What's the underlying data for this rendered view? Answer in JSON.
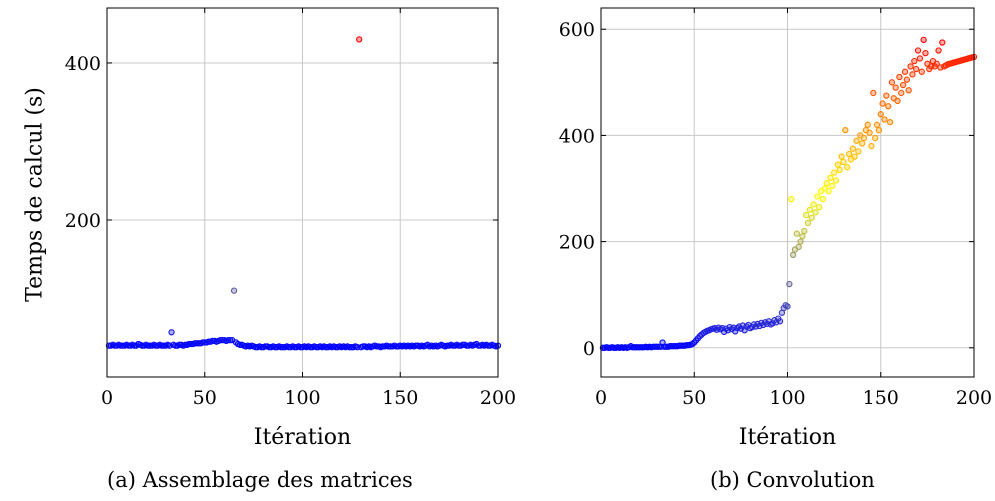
{
  "figure": {
    "caption_a": "(a) Assemblage des matrices",
    "caption_b": "(b) Convolution"
  },
  "chart_data": [
    {
      "type": "scatter",
      "title": "",
      "xlabel": "Itération",
      "ylabel": "Temps de calcul (s)",
      "xlim": [
        0,
        200
      ],
      "ylim": [
        0,
        470
      ],
      "xticks": [
        0,
        50,
        100,
        150,
        200
      ],
      "yticks": [
        200,
        400
      ],
      "grid": true,
      "colormap": [
        "#0000ff",
        "#ffff00",
        "#ff0000"
      ],
      "series": [
        {
          "x": [
            1,
            2,
            3,
            4,
            5,
            6,
            7,
            8,
            9,
            10,
            11,
            12,
            13,
            14,
            15,
            16,
            17,
            18,
            19,
            20,
            21,
            22,
            23,
            24,
            25,
            26,
            27,
            28,
            29,
            30,
            31,
            32,
            33,
            34,
            35,
            36,
            37,
            38,
            39,
            40,
            41,
            42,
            43,
            44,
            45,
            46,
            47,
            48,
            49,
            50,
            51,
            52,
            53,
            54,
            55,
            56,
            57,
            58,
            59,
            60,
            61,
            62,
            63,
            64,
            65,
            66,
            67,
            68,
            69,
            70,
            71,
            72,
            73,
            74,
            75,
            76,
            77,
            78,
            79,
            80,
            81,
            82,
            83,
            84,
            85,
            86,
            87,
            88,
            89,
            90,
            91,
            92,
            93,
            94,
            95,
            96,
            97,
            98,
            99,
            100,
            101,
            102,
            103,
            104,
            105,
            106,
            107,
            108,
            109,
            110,
            111,
            112,
            113,
            114,
            115,
            116,
            117,
            118,
            119,
            120,
            121,
            122,
            123,
            124,
            125,
            126,
            127,
            128,
            129,
            130,
            131,
            132,
            133,
            134,
            135,
            136,
            137,
            138,
            139,
            140,
            141,
            142,
            143,
            144,
            145,
            146,
            147,
            148,
            149,
            150,
            151,
            152,
            153,
            154,
            155,
            156,
            157,
            158,
            159,
            160,
            161,
            162,
            163,
            164,
            165,
            166,
            167,
            168,
            169,
            170,
            171,
            172,
            173,
            174,
            175,
            176,
            177,
            178,
            179,
            180,
            181,
            182,
            183,
            184,
            185,
            186,
            187,
            188,
            189,
            190,
            191,
            192,
            193,
            194,
            195,
            196,
            197,
            198,
            199,
            200
          ],
          "y": [
            40,
            40,
            41,
            40,
            40,
            41,
            40,
            40,
            40,
            41,
            40,
            40,
            41,
            40,
            40,
            42,
            41,
            40,
            40,
            41,
            40,
            40,
            40,
            41,
            40,
            40,
            41,
            40,
            40,
            40,
            41,
            40,
            57,
            41,
            40,
            40,
            41,
            41,
            40,
            41,
            41,
            42,
            42,
            42,
            43,
            43,
            43,
            43,
            44,
            44,
            44,
            45,
            45,
            46,
            46,
            45,
            46,
            47,
            47,
            47,
            46,
            47,
            47,
            47,
            110,
            44,
            42,
            41,
            41,
            40,
            39,
            40,
            39,
            40,
            39,
            38,
            38,
            39,
            38,
            38,
            39,
            39,
            38,
            38,
            39,
            38,
            38,
            39,
            38,
            38,
            38,
            39,
            38,
            38,
            39,
            38,
            38,
            39,
            38,
            38,
            39,
            38,
            39,
            38,
            38,
            39,
            38,
            38,
            39,
            38,
            39,
            38,
            38,
            39,
            38,
            39,
            38,
            38,
            39,
            38,
            39,
            38,
            39,
            38,
            38,
            38,
            39,
            38,
            430,
            38,
            39,
            39,
            38,
            39,
            38,
            39,
            40,
            39,
            39,
            38,
            39,
            39,
            40,
            39,
            39,
            39,
            40,
            39,
            39,
            40,
            39,
            40,
            39,
            40,
            39,
            40,
            39,
            40,
            40,
            39,
            40,
            39,
            40,
            41,
            39,
            40,
            39,
            40,
            39,
            40,
            41,
            40,
            39,
            40,
            40,
            41,
            40,
            40,
            41,
            40,
            40,
            41,
            41,
            40,
            40,
            41,
            40,
            41,
            42,
            40,
            40,
            41,
            40,
            41,
            40,
            40,
            41,
            40,
            39,
            40
          ]
        }
      ]
    },
    {
      "type": "scatter",
      "title": "",
      "xlabel": "Itération",
      "ylabel": "",
      "xlim": [
        0,
        200
      ],
      "ylim": [
        -55,
        640
      ],
      "xticks": [
        0,
        50,
        100,
        150,
        200
      ],
      "yticks": [
        0,
        200,
        400,
        600
      ],
      "grid": true,
      "colormap": [
        "#0000ff",
        "#ffff00",
        "#ff0000"
      ],
      "series": [
        {
          "x": [
            1,
            2,
            3,
            4,
            5,
            6,
            7,
            8,
            9,
            10,
            11,
            12,
            13,
            14,
            15,
            16,
            17,
            18,
            19,
            20,
            21,
            22,
            23,
            24,
            25,
            26,
            27,
            28,
            29,
            30,
            31,
            32,
            33,
            34,
            35,
            36,
            37,
            38,
            39,
            40,
            41,
            42,
            43,
            44,
            45,
            46,
            47,
            48,
            49,
            50,
            51,
            52,
            53,
            54,
            55,
            56,
            57,
            58,
            59,
            60,
            61,
            62,
            63,
            64,
            65,
            66,
            67,
            68,
            69,
            70,
            71,
            72,
            73,
            74,
            75,
            76,
            77,
            78,
            79,
            80,
            81,
            82,
            83,
            84,
            85,
            86,
            87,
            88,
            89,
            90,
            91,
            92,
            93,
            94,
            95,
            96,
            97,
            98,
            99,
            100,
            101,
            102,
            103,
            104,
            105,
            106,
            107,
            108,
            109,
            110,
            111,
            112,
            113,
            114,
            115,
            116,
            117,
            118,
            119,
            120,
            121,
            122,
            123,
            124,
            125,
            126,
            127,
            128,
            129,
            130,
            131,
            132,
            133,
            134,
            135,
            136,
            137,
            138,
            139,
            140,
            141,
            142,
            143,
            144,
            145,
            146,
            147,
            148,
            149,
            150,
            151,
            152,
            153,
            154,
            155,
            156,
            157,
            158,
            159,
            160,
            161,
            162,
            163,
            164,
            165,
            166,
            167,
            168,
            169,
            170,
            171,
            172,
            173,
            174,
            175,
            176,
            177,
            178,
            179,
            180,
            181,
            182,
            183,
            184,
            185,
            186,
            187,
            188,
            189,
            190,
            191,
            192,
            193,
            194,
            195,
            196,
            197,
            198,
            199,
            200
          ],
          "y": [
            0,
            0,
            1,
            0,
            0,
            1,
            0,
            0,
            1,
            0,
            1,
            0,
            1,
            0,
            1,
            3,
            1,
            1,
            1,
            1,
            1,
            1,
            1,
            2,
            1,
            2,
            1,
            2,
            2,
            2,
            2,
            2,
            10,
            2,
            2,
            2,
            3,
            3,
            3,
            3,
            3,
            4,
            4,
            4,
            4,
            5,
            5,
            6,
            7,
            10,
            14,
            18,
            22,
            25,
            28,
            30,
            32,
            33,
            35,
            36,
            37,
            34,
            38,
            35,
            37,
            30,
            36,
            33,
            39,
            35,
            38,
            31,
            37,
            40,
            36,
            42,
            33,
            40,
            43,
            37,
            39,
            44,
            40,
            45,
            41,
            47,
            43,
            48,
            45,
            50,
            44,
            46,
            52,
            48,
            55,
            50,
            66,
            75,
            80,
            78,
            120,
            280,
            175,
            185,
            215,
            190,
            200,
            210,
            220,
            250,
            235,
            260,
            245,
            270,
            255,
            285,
            265,
            295,
            280,
            300,
            310,
            295,
            320,
            305,
            330,
            315,
            345,
            335,
            360,
            350,
            410,
            340,
            365,
            355,
            375,
            360,
            390,
            370,
            400,
            385,
            395,
            410,
            420,
            405,
            380,
            480,
            395,
            420,
            410,
            440,
            460,
            430,
            475,
            455,
            425,
            500,
            470,
            490,
            465,
            510,
            480,
            495,
            520,
            505,
            485,
            530,
            515,
            540,
            525,
            560,
            545,
            520,
            580,
            555,
            535,
            525,
            530,
            540,
            530,
            535,
            560,
            528,
            575,
            530,
            532,
            534,
            535,
            536,
            537,
            538,
            539,
            540,
            541,
            542,
            543,
            544,
            545,
            546,
            547,
            548
          ]
        }
      ]
    }
  ]
}
